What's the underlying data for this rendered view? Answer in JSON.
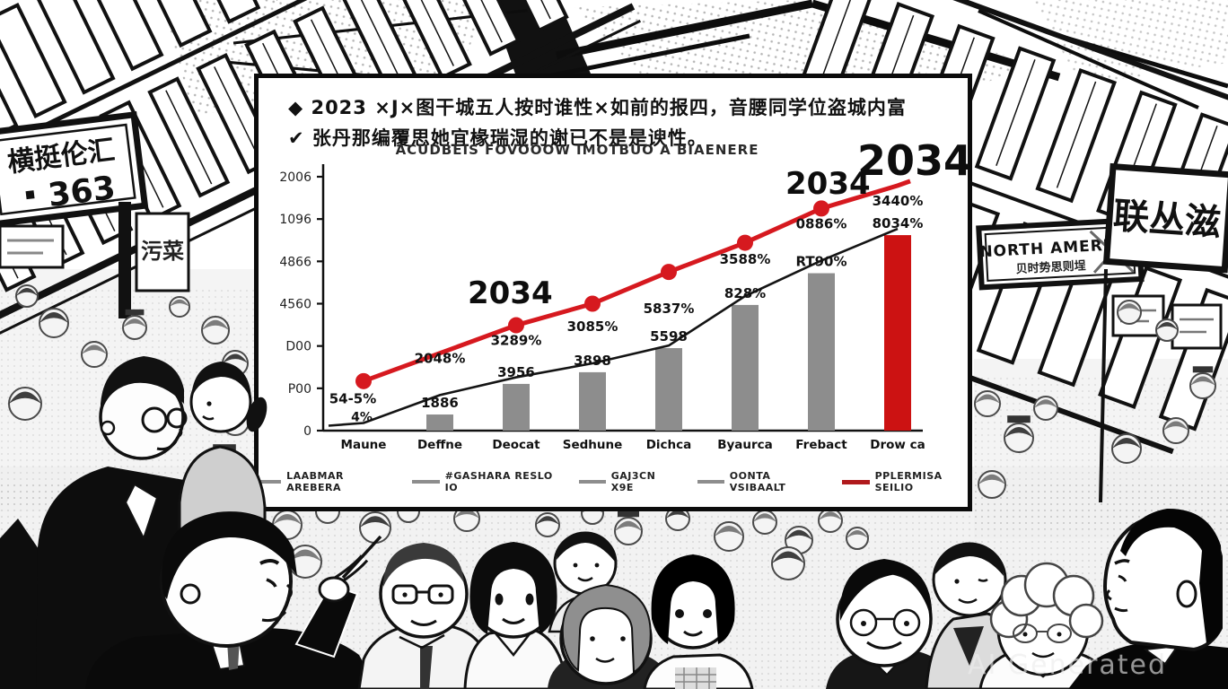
{
  "scene": {
    "description": "black-and-white comic illustration of a crowded market hall with a statistics chart panel",
    "watermark": "AI Generated",
    "signs": {
      "left_banner_text": "横挺伦汇",
      "left_banner_number": "363",
      "stall_sign": "污菜",
      "north_america": "NORTH AMERICA",
      "north_america_sub": "贝时势思则埕",
      "right_banner": "联丛滋"
    }
  },
  "panel": {
    "bullet1": "◆ 2023 ×J×图干城五人按时谁性×如前的报四，音腰同学位盗城内富",
    "bullet2": "✔ 张丹那编覆思她宜椽瑞湿的谢已不是是谀性。",
    "title": "ACUDBEIS FOVOOOW IMOTBUO A BIAENERE"
  },
  "chart_data": {
    "type": "bar",
    "title": "ACUDBEIS FOVOOOW IMOTBUO A BIAENERE",
    "xlabel": "",
    "ylabel": "",
    "ylim": [
      0,
      2000
    ],
    "grid": false,
    "categories": [
      "Maune",
      "Deffne",
      "Deocat",
      "Sedhune",
      "Dichca",
      "Byaurca",
      "Frebact",
      "Drow ca"
    ],
    "y_ticks": [
      "2006",
      "1096",
      "4866",
      "4560",
      "D00",
      "P00",
      "0"
    ],
    "bars": {
      "values": [
        0,
        127,
        368,
        460,
        650,
        990,
        1240,
        1540
      ],
      "labels": [
        "",
        "1886",
        "3956",
        "3898",
        "5598",
        "828%",
        "RT90%",
        "8034%"
      ],
      "colors": [
        "#8d8d8d",
        "#8d8d8d",
        "#8d8d8d",
        "#8d8d8d",
        "#8d8d8d",
        "#8d8d8d",
        "#8d8d8d",
        "#cc1212"
      ]
    },
    "red_line": {
      "name": "PPLERMISA SEILIO",
      "color": "#d6191f",
      "values": [
        390,
        610,
        830,
        1000,
        1250,
        1480,
        1750,
        1930
      ],
      "dots": [
        true,
        false,
        true,
        true,
        true,
        true,
        true,
        false
      ]
    },
    "black_line": {
      "name": "OONTA VSIBAALT",
      "color": "#141414",
      "values": [
        60,
        280,
        420,
        530,
        670,
        1060,
        1340,
        1590
      ]
    },
    "upper_labels": [
      "54-5%",
      "2048%",
      "3289%",
      "3085%",
      "5837%",
      "3588%",
      "0886%",
      "3440%"
    ],
    "extra_label_cat1": "4%",
    "annotations": [
      {
        "text": "2034",
        "x": 238,
        "y": 228,
        "size": 34
      },
      {
        "text": "2034",
        "x": 592,
        "y": 106,
        "size": 34
      },
      {
        "text": "2034",
        "x": 672,
        "y": 74,
        "size": 46
      }
    ],
    "legend": [
      {
        "label": "LAABMAR AREBERA",
        "color": "#8d8d8d"
      },
      {
        "label": "#GASHARA RESLO IO",
        "color": "#8d8d8d"
      },
      {
        "label": "GAJ3CN X9E",
        "color": "#8d8d8d"
      },
      {
        "label": "OONTA VSIBAALT",
        "color": "#8d8d8d"
      },
      {
        "label": "PPLERMISA SEILIO",
        "color": "#b0191c"
      }
    ],
    "legend_position": "bottom"
  }
}
